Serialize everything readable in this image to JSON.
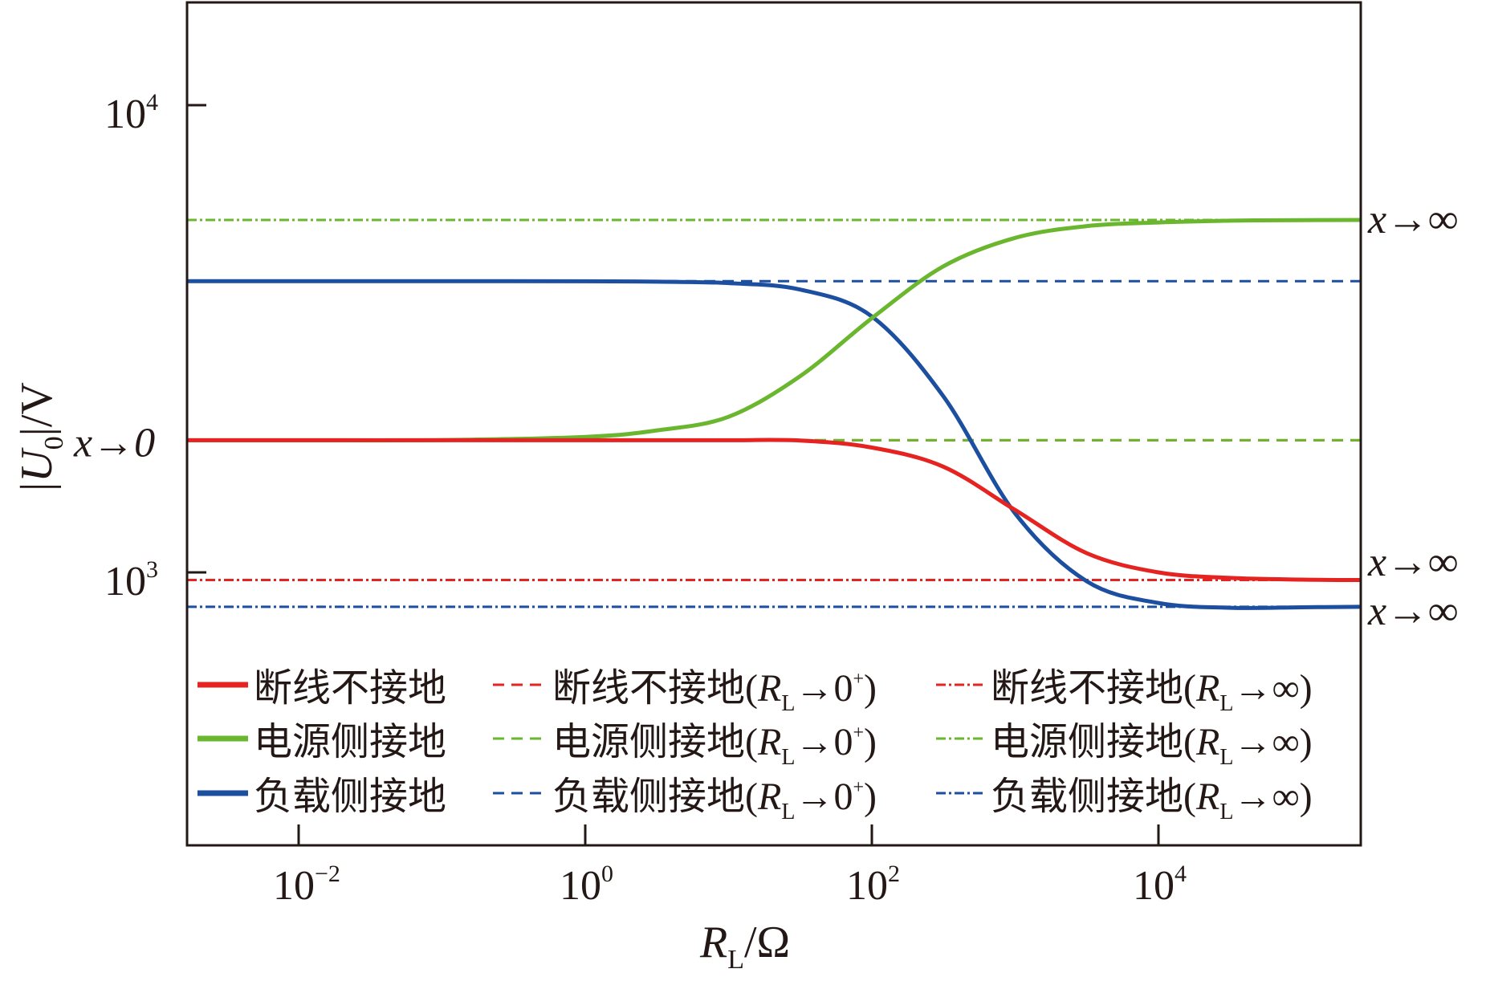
{
  "chart_data": {
    "type": "line",
    "xscale": "log",
    "yscale": "log",
    "xlabel": {
      "var": "R",
      "sub": "L",
      "unit": "/Ω"
    },
    "ylabel": {
      "open": "|",
      "var": "U",
      "sub": "0",
      "rest": "|/V"
    },
    "xlim_log10": [
      -2.78,
      5.41
    ],
    "ylim_log10": [
      2.416,
      4.22
    ],
    "xticks": [
      {
        "base": "10",
        "exp": "−2",
        "log": -2
      },
      {
        "base": "10",
        "exp": "0",
        "log": 0
      },
      {
        "base": "10",
        "exp": "2",
        "log": 2
      },
      {
        "base": "10",
        "exp": "4",
        "log": 4
      }
    ],
    "yticks": [
      {
        "base": "10",
        "exp": "4",
        "log": 4
      },
      {
        "base": "10",
        "exp": "3",
        "log": 3
      }
    ],
    "annotations": [
      {
        "text": "x→0",
        "side": "left",
        "y": 1918
      },
      {
        "text": "x→∞",
        "side": "right",
        "y": 5680
      },
      {
        "text": "x→∞",
        "side": "right",
        "y": 1000
      },
      {
        "text": "x→∞",
        "side": "right",
        "y": 844
      }
    ],
    "colors": {
      "red": "#e52421",
      "green": "#6ab72f",
      "blue": "#1d4fa0"
    },
    "x": [
      0.00166,
      0.01,
      0.1,
      1,
      3.16,
      10,
      31.6,
      100,
      316,
      1000,
      3162,
      10000,
      31623,
      100000,
      257000
    ],
    "series": [
      {
        "name": "断线不接地",
        "color": "red",
        "style": "solid",
        "values": [
          1918,
          1918,
          1918,
          1918,
          1918,
          1918,
          1915,
          1850,
          1683,
          1360,
          1099,
          1000,
          973,
          965,
          963
        ]
      },
      {
        "name": "电源侧接地",
        "color": "green",
        "style": "solid",
        "values": [
          1918,
          1918,
          1920,
          1950,
          2013,
          2153,
          2630,
          3500,
          4520,
          5200,
          5510,
          5610,
          5660,
          5675,
          5680
        ]
      },
      {
        "name": "负载侧接地",
        "color": "blue",
        "style": "solid",
        "values": [
          4200,
          4200,
          4200,
          4198,
          4190,
          4160,
          4030,
          3530,
          2380,
          1337,
          957,
          860,
          840,
          842,
          844
        ]
      },
      {
        "name": "断线不接地(RL→0+)",
        "color": "red",
        "style": "dash",
        "const": 1918
      },
      {
        "name": "电源侧接地(RL→0+)",
        "color": "green",
        "style": "dash",
        "const": 1918
      },
      {
        "name": "负载侧接地(RL→0+)",
        "color": "blue",
        "style": "dash",
        "const": 4200
      },
      {
        "name": "断线不接地(RL→∞)",
        "color": "red",
        "style": "dashdot",
        "const": 963
      },
      {
        "name": "电源侧接地(RL→∞)",
        "color": "green",
        "style": "dashdot",
        "const": 5680
      },
      {
        "name": "负载侧接地(RL→∞)",
        "color": "blue",
        "style": "dashdot",
        "const": 844
      }
    ],
    "legend": {
      "placement": "bottom-left",
      "entries": [
        {
          "series": 0,
          "prefix": "断线不接地"
        },
        {
          "series": 3,
          "prefix": "断线不接地(",
          "var": "R",
          "sub": "L",
          "arrow": "→0",
          "sup": "+",
          "close": ")"
        },
        {
          "series": 6,
          "prefix": "断线不接地(",
          "var": "R",
          "sub": "L",
          "arrow": "→∞",
          "close": ")"
        },
        {
          "series": 1,
          "prefix": "电源侧接地"
        },
        {
          "series": 4,
          "prefix": "电源侧接地(",
          "var": "R",
          "sub": "L",
          "arrow": "→0",
          "sup": "+",
          "close": ")"
        },
        {
          "series": 7,
          "prefix": "电源侧接地(",
          "var": "R",
          "sub": "L",
          "arrow": "→∞",
          "close": ")"
        },
        {
          "series": 2,
          "prefix": "负载侧接地"
        },
        {
          "series": 5,
          "prefix": "负载侧接地(",
          "var": "R",
          "sub": "L",
          "arrow": "→0",
          "sup": "+",
          "close": ")"
        },
        {
          "series": 8,
          "prefix": "负载侧接地(",
          "var": "R",
          "sub": "L",
          "arrow": "→∞",
          "close": ")"
        }
      ]
    }
  }
}
